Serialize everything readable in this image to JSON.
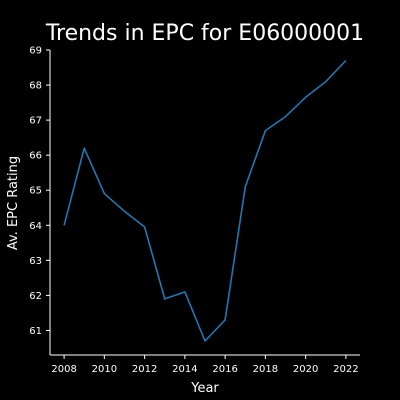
{
  "chart_data": {
    "type": "line",
    "title": "Trends in EPC for E06000001",
    "xlabel": "Year",
    "ylabel": "Av. EPC Rating",
    "grid": false,
    "x": [
      2008,
      2009,
      2010,
      2011,
      2012,
      2013,
      2014,
      2015,
      2016,
      2017,
      2018,
      2019,
      2020,
      2021,
      2022
    ],
    "series": [
      {
        "values": [
          64.0,
          66.2,
          64.9,
          64.4,
          63.95,
          61.9,
          62.1,
          60.7,
          61.3,
          65.1,
          66.7,
          67.1,
          67.65,
          68.1,
          68.7
        ],
        "color": "#1f77b4"
      }
    ],
    "xticks": [
      2008,
      2010,
      2012,
      2014,
      2016,
      2018,
      2020,
      2022
    ],
    "yticks": [
      61,
      62,
      63,
      64,
      65,
      66,
      67,
      68,
      69
    ],
    "xlim": [
      2007.3,
      2022.7
    ],
    "ylim": [
      60.3,
      69.0
    ]
  }
}
